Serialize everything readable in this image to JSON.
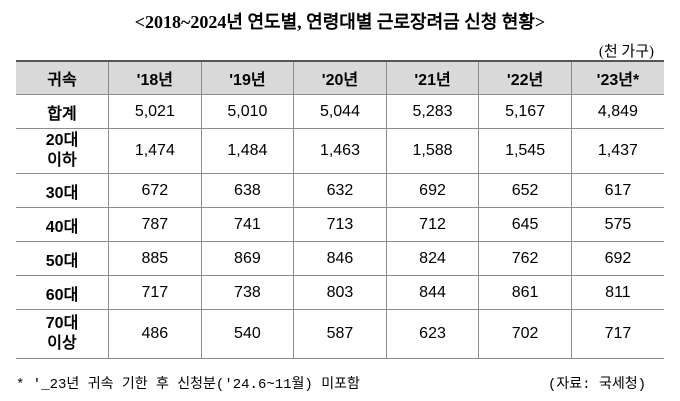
{
  "title": "<2018~2024년 연도별, 연령대별 근로장려금 신청 현황>",
  "unit": "(천 가구)",
  "table": {
    "header": [
      "귀속",
      "'18년",
      "'19년",
      "'20년",
      "'21년",
      "'22년",
      "'23년*"
    ],
    "rows": [
      {
        "label": [
          "합계"
        ],
        "values": [
          "5,021",
          "5,010",
          "5,044",
          "5,283",
          "5,167",
          "4,849"
        ]
      },
      {
        "label": [
          "20대",
          "이하"
        ],
        "values": [
          "1,474",
          "1,484",
          "1,463",
          "1,588",
          "1,545",
          "1,437"
        ]
      },
      {
        "label": [
          "30대"
        ],
        "values": [
          "672",
          "638",
          "632",
          "692",
          "652",
          "617"
        ]
      },
      {
        "label": [
          "40대"
        ],
        "values": [
          "787",
          "741",
          "713",
          "712",
          "645",
          "575"
        ]
      },
      {
        "label": [
          "50대"
        ],
        "values": [
          "885",
          "869",
          "846",
          "824",
          "762",
          "692"
        ]
      },
      {
        "label": [
          "60대"
        ],
        "values": [
          "717",
          "738",
          "803",
          "844",
          "861",
          "811"
        ]
      },
      {
        "label": [
          "70대",
          "이상"
        ],
        "values": [
          "486",
          "540",
          "587",
          "623",
          "702",
          "717"
        ]
      }
    ]
  },
  "footnote": "* '_23년 귀속 기한 후 신청분('24.6~11월) 미포함",
  "source": "(자료: 국세청)"
}
